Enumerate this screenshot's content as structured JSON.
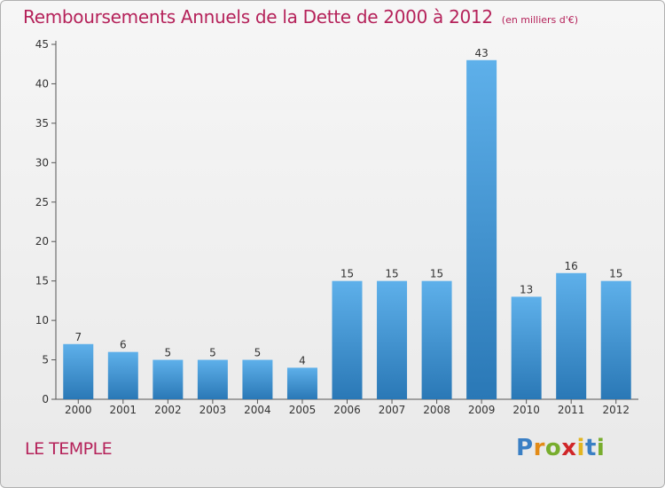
{
  "header": {
    "title": "Remboursements Annuels de la Dette de 2000 à 2012",
    "subtitle": "(en milliers d'€)"
  },
  "footer": {
    "commune": "LE TEMPLE",
    "logo_letters": [
      "P",
      "r",
      "o",
      "x",
      "i",
      "t",
      "i"
    ],
    "logo_colors": [
      "#3a7fc4",
      "#e38b17",
      "#78ad2d",
      "#d02628",
      "#e2b520",
      "#3a7fc4",
      "#78ad2d"
    ]
  },
  "chart_data": {
    "type": "bar",
    "title": "Remboursements Annuels de la Dette de 2000 à 2012",
    "subtitle": "(en milliers d'€)",
    "xlabel": "",
    "ylabel": "",
    "categories": [
      "2000",
      "2001",
      "2002",
      "2003",
      "2004",
      "2005",
      "2006",
      "2007",
      "2008",
      "2009",
      "2010",
      "2011",
      "2012"
    ],
    "values": [
      7,
      6,
      5,
      5,
      5,
      4,
      15,
      15,
      15,
      43,
      13,
      16,
      15
    ],
    "ylim": [
      0,
      45
    ],
    "yticks": [
      0,
      5,
      10,
      15,
      20,
      25,
      30,
      35,
      40,
      45
    ],
    "grid": false,
    "legend": "none",
    "colors": {
      "bar_top": "#5eb0ea",
      "bar_bottom": "#2a78b6",
      "title": "#b5225a",
      "axis": "#555555"
    }
  }
}
